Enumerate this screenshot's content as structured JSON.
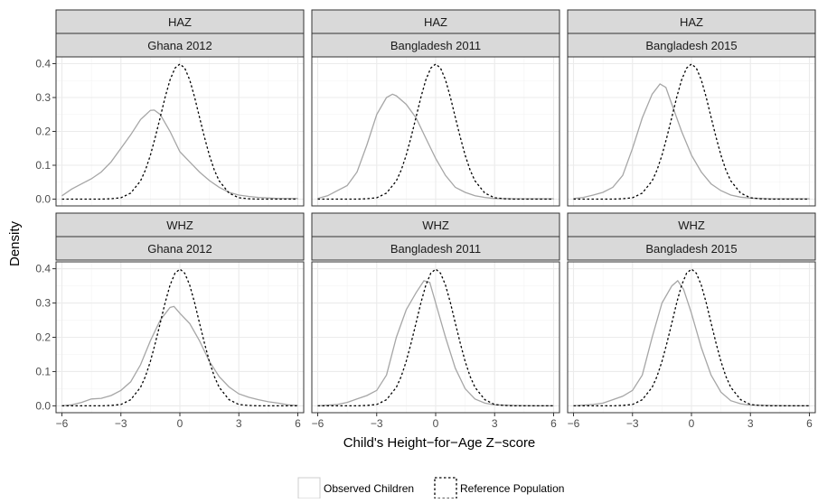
{
  "chart_data": {
    "type": "line",
    "xlabel": "Child's Height−for−Age Z−score",
    "ylabel": "Density",
    "xlim": [
      -6.3,
      6.3
    ],
    "ylim": [
      -0.02,
      0.42
    ],
    "x_ticks": [
      -6,
      -3,
      0,
      3,
      6
    ],
    "x_tick_labels": [
      "−6",
      "−3",
      "0",
      "3",
      "6"
    ],
    "y_ticks": [
      0.0,
      0.1,
      0.2,
      0.3,
      0.4
    ],
    "y_tick_labels": [
      "0.0",
      "0.1",
      "0.2",
      "0.3",
      "0.4"
    ],
    "grid": true,
    "legend_position": "bottom",
    "colors": {
      "observed": "#a6a6a6",
      "reference": "#000000",
      "strip_fill": "#d9d9d9",
      "panel_border": "#333333",
      "grid": "#ebebeb"
    },
    "legend": [
      {
        "label": "Observed Children",
        "style": "solid"
      },
      {
        "label": "Reference Population",
        "style": "dotted"
      }
    ],
    "panels": [
      {
        "row_label": "HAZ",
        "col_label": "Ghana 2012",
        "observed": {
          "x": [
            -6.0,
            -5.5,
            -5.0,
            -4.5,
            -4.0,
            -3.5,
            -3.0,
            -2.5,
            -2.0,
            -1.5,
            -1.3,
            -1.0,
            -0.5,
            0.0,
            0.5,
            1.0,
            1.5,
            2.0,
            2.5,
            3.0,
            3.5,
            4.0,
            5.0,
            6.0
          ],
          "y": [
            0.01,
            0.03,
            0.045,
            0.06,
            0.08,
            0.11,
            0.15,
            0.19,
            0.235,
            0.262,
            0.263,
            0.25,
            0.2,
            0.14,
            0.11,
            0.08,
            0.055,
            0.035,
            0.02,
            0.012,
            0.008,
            0.005,
            0.002,
            0.002
          ]
        },
        "reference": {
          "x": [
            -6,
            -5.5,
            -5,
            -4.5,
            -4,
            -3.5,
            -3,
            -2.5,
            -2,
            -1.75,
            -1.5,
            -1.25,
            -1,
            -0.75,
            -0.5,
            -0.25,
            0,
            0.25,
            0.5,
            0.75,
            1,
            1.25,
            1.5,
            1.75,
            2,
            2.5,
            3,
            3.5,
            4,
            4.5,
            5,
            5.5,
            6
          ],
          "y": [
            0,
            0,
            0,
            0,
            0,
            0.001,
            0.004,
            0.018,
            0.054,
            0.086,
            0.13,
            0.183,
            0.242,
            0.301,
            0.352,
            0.387,
            0.399,
            0.387,
            0.352,
            0.301,
            0.242,
            0.183,
            0.13,
            0.086,
            0.054,
            0.018,
            0.004,
            0.001,
            0,
            0,
            0,
            0,
            0
          ]
        }
      },
      {
        "row_label": "HAZ",
        "col_label": "Bangladesh 2011",
        "observed": {
          "x": [
            -6.0,
            -5.5,
            -5.0,
            -4.5,
            -4.0,
            -3.5,
            -3.0,
            -2.5,
            -2.2,
            -2.0,
            -1.5,
            -1.0,
            -0.5,
            0.0,
            0.5,
            1.0,
            1.5,
            2.0,
            2.5,
            3.0,
            4.0,
            5.0,
            6.0
          ],
          "y": [
            0.002,
            0.01,
            0.025,
            0.04,
            0.08,
            0.16,
            0.25,
            0.3,
            0.31,
            0.305,
            0.28,
            0.24,
            0.18,
            0.12,
            0.07,
            0.035,
            0.02,
            0.01,
            0.005,
            0.002,
            0.001,
            0.001,
            0.001
          ]
        },
        "reference": {
          "x": [
            -6,
            -5.5,
            -5,
            -4.5,
            -4,
            -3.5,
            -3,
            -2.5,
            -2,
            -1.75,
            -1.5,
            -1.25,
            -1,
            -0.75,
            -0.5,
            -0.25,
            0,
            0.25,
            0.5,
            0.75,
            1,
            1.25,
            1.5,
            1.75,
            2,
            2.5,
            3,
            3.5,
            4,
            4.5,
            5,
            5.5,
            6
          ],
          "y": [
            0,
            0,
            0,
            0,
            0,
            0.001,
            0.004,
            0.018,
            0.054,
            0.086,
            0.13,
            0.183,
            0.242,
            0.301,
            0.352,
            0.387,
            0.399,
            0.387,
            0.352,
            0.301,
            0.242,
            0.183,
            0.13,
            0.086,
            0.054,
            0.018,
            0.004,
            0.001,
            0,
            0,
            0,
            0,
            0
          ]
        }
      },
      {
        "row_label": "HAZ",
        "col_label": "Bangladesh 2015",
        "observed": {
          "x": [
            -6.0,
            -5.5,
            -5.0,
            -4.5,
            -4.0,
            -3.5,
            -3.0,
            -2.5,
            -2.0,
            -1.6,
            -1.3,
            -1.0,
            -0.5,
            0.0,
            0.5,
            1.0,
            1.5,
            2.0,
            2.5,
            3.0,
            4.0,
            5.0,
            6.0
          ],
          "y": [
            0.002,
            0.005,
            0.012,
            0.02,
            0.035,
            0.07,
            0.15,
            0.24,
            0.31,
            0.34,
            0.33,
            0.28,
            0.2,
            0.13,
            0.08,
            0.045,
            0.025,
            0.012,
            0.006,
            0.003,
            0.001,
            0.001,
            0.001
          ]
        },
        "reference": {
          "x": [
            -6,
            -5.5,
            -5,
            -4.5,
            -4,
            -3.5,
            -3,
            -2.5,
            -2,
            -1.75,
            -1.5,
            -1.25,
            -1,
            -0.75,
            -0.5,
            -0.25,
            0,
            0.25,
            0.5,
            0.75,
            1,
            1.25,
            1.5,
            1.75,
            2,
            2.5,
            3,
            3.5,
            4,
            4.5,
            5,
            5.5,
            6
          ],
          "y": [
            0,
            0,
            0,
            0,
            0,
            0.001,
            0.004,
            0.018,
            0.054,
            0.086,
            0.13,
            0.183,
            0.242,
            0.301,
            0.352,
            0.387,
            0.399,
            0.387,
            0.352,
            0.301,
            0.242,
            0.183,
            0.13,
            0.086,
            0.054,
            0.018,
            0.004,
            0.001,
            0,
            0,
            0,
            0,
            0
          ]
        }
      },
      {
        "row_label": "WHZ",
        "col_label": "Ghana 2012",
        "observed": {
          "x": [
            -6.0,
            -5.5,
            -5.0,
            -4.5,
            -4.0,
            -3.5,
            -3.0,
            -2.5,
            -2.0,
            -1.5,
            -1.0,
            -0.5,
            -0.3,
            0.0,
            0.5,
            1.0,
            1.5,
            2.0,
            2.5,
            3.0,
            3.5,
            4.0,
            4.5,
            5.0,
            5.5,
            6.0
          ],
          "y": [
            0.0,
            0.003,
            0.01,
            0.02,
            0.022,
            0.03,
            0.045,
            0.07,
            0.12,
            0.19,
            0.25,
            0.287,
            0.29,
            0.27,
            0.24,
            0.19,
            0.13,
            0.085,
            0.055,
            0.035,
            0.025,
            0.018,
            0.012,
            0.008,
            0.003,
            0.001
          ]
        },
        "reference": {
          "x": [
            -6,
            -5.5,
            -5,
            -4.5,
            -4,
            -3.5,
            -3,
            -2.5,
            -2,
            -1.75,
            -1.5,
            -1.25,
            -1,
            -0.75,
            -0.5,
            -0.25,
            0,
            0.25,
            0.5,
            0.75,
            1,
            1.25,
            1.5,
            1.75,
            2,
            2.5,
            3,
            3.5,
            4,
            4.5,
            5,
            5.5,
            6
          ],
          "y": [
            0,
            0,
            0,
            0,
            0,
            0.001,
            0.004,
            0.018,
            0.054,
            0.086,
            0.13,
            0.183,
            0.242,
            0.301,
            0.352,
            0.387,
            0.399,
            0.387,
            0.352,
            0.301,
            0.242,
            0.183,
            0.13,
            0.086,
            0.054,
            0.018,
            0.004,
            0.001,
            0,
            0,
            0,
            0,
            0
          ]
        }
      },
      {
        "row_label": "WHZ",
        "col_label": "Bangladesh 2011",
        "observed": {
          "x": [
            -6.0,
            -5.5,
            -5.0,
            -4.5,
            -4.0,
            -3.5,
            -3.0,
            -2.5,
            -2.0,
            -1.5,
            -1.0,
            -0.6,
            -0.3,
            0.0,
            0.5,
            1.0,
            1.5,
            2.0,
            2.5,
            3.0,
            4.0,
            5.0,
            6.0
          ],
          "y": [
            0.0,
            0.002,
            0.004,
            0.01,
            0.02,
            0.03,
            0.045,
            0.09,
            0.2,
            0.28,
            0.33,
            0.365,
            0.36,
            0.3,
            0.2,
            0.11,
            0.05,
            0.02,
            0.008,
            0.003,
            0.001,
            0.0,
            0.0
          ]
        },
        "reference": {
          "x": [
            -6,
            -5.5,
            -5,
            -4.5,
            -4,
            -3.5,
            -3,
            -2.5,
            -2,
            -1.75,
            -1.5,
            -1.25,
            -1,
            -0.75,
            -0.5,
            -0.25,
            0,
            0.25,
            0.5,
            0.75,
            1,
            1.25,
            1.5,
            1.75,
            2,
            2.5,
            3,
            3.5,
            4,
            4.5,
            5,
            5.5,
            6
          ],
          "y": [
            0,
            0,
            0,
            0,
            0,
            0.001,
            0.004,
            0.018,
            0.054,
            0.086,
            0.13,
            0.183,
            0.242,
            0.301,
            0.352,
            0.387,
            0.399,
            0.387,
            0.352,
            0.301,
            0.242,
            0.183,
            0.13,
            0.086,
            0.054,
            0.018,
            0.004,
            0.001,
            0,
            0,
            0,
            0,
            0
          ]
        }
      },
      {
        "row_label": "WHZ",
        "col_label": "Bangladesh 2015",
        "observed": {
          "x": [
            -6.0,
            -5.5,
            -5.0,
            -4.5,
            -4.0,
            -3.5,
            -3.0,
            -2.5,
            -2.0,
            -1.5,
            -1.0,
            -0.7,
            -0.4,
            0.0,
            0.5,
            1.0,
            1.5,
            2.0,
            2.5,
            3.0,
            4.0,
            5.0,
            6.0
          ],
          "y": [
            0.0,
            0.002,
            0.004,
            0.008,
            0.018,
            0.028,
            0.045,
            0.09,
            0.2,
            0.3,
            0.35,
            0.365,
            0.34,
            0.27,
            0.17,
            0.09,
            0.04,
            0.015,
            0.006,
            0.002,
            0.001,
            0.0,
            0.0
          ]
        },
        "reference": {
          "x": [
            -6,
            -5.5,
            -5,
            -4.5,
            -4,
            -3.5,
            -3,
            -2.5,
            -2,
            -1.75,
            -1.5,
            -1.25,
            -1,
            -0.75,
            -0.5,
            -0.25,
            0,
            0.25,
            0.5,
            0.75,
            1,
            1.25,
            1.5,
            1.75,
            2,
            2.5,
            3,
            3.5,
            4,
            4.5,
            5,
            5.5,
            6
          ],
          "y": [
            0,
            0,
            0,
            0,
            0,
            0.001,
            0.004,
            0.018,
            0.054,
            0.086,
            0.13,
            0.183,
            0.242,
            0.301,
            0.352,
            0.387,
            0.399,
            0.387,
            0.352,
            0.301,
            0.242,
            0.183,
            0.13,
            0.086,
            0.054,
            0.018,
            0.004,
            0.001,
            0,
            0,
            0,
            0,
            0
          ]
        }
      }
    ]
  }
}
